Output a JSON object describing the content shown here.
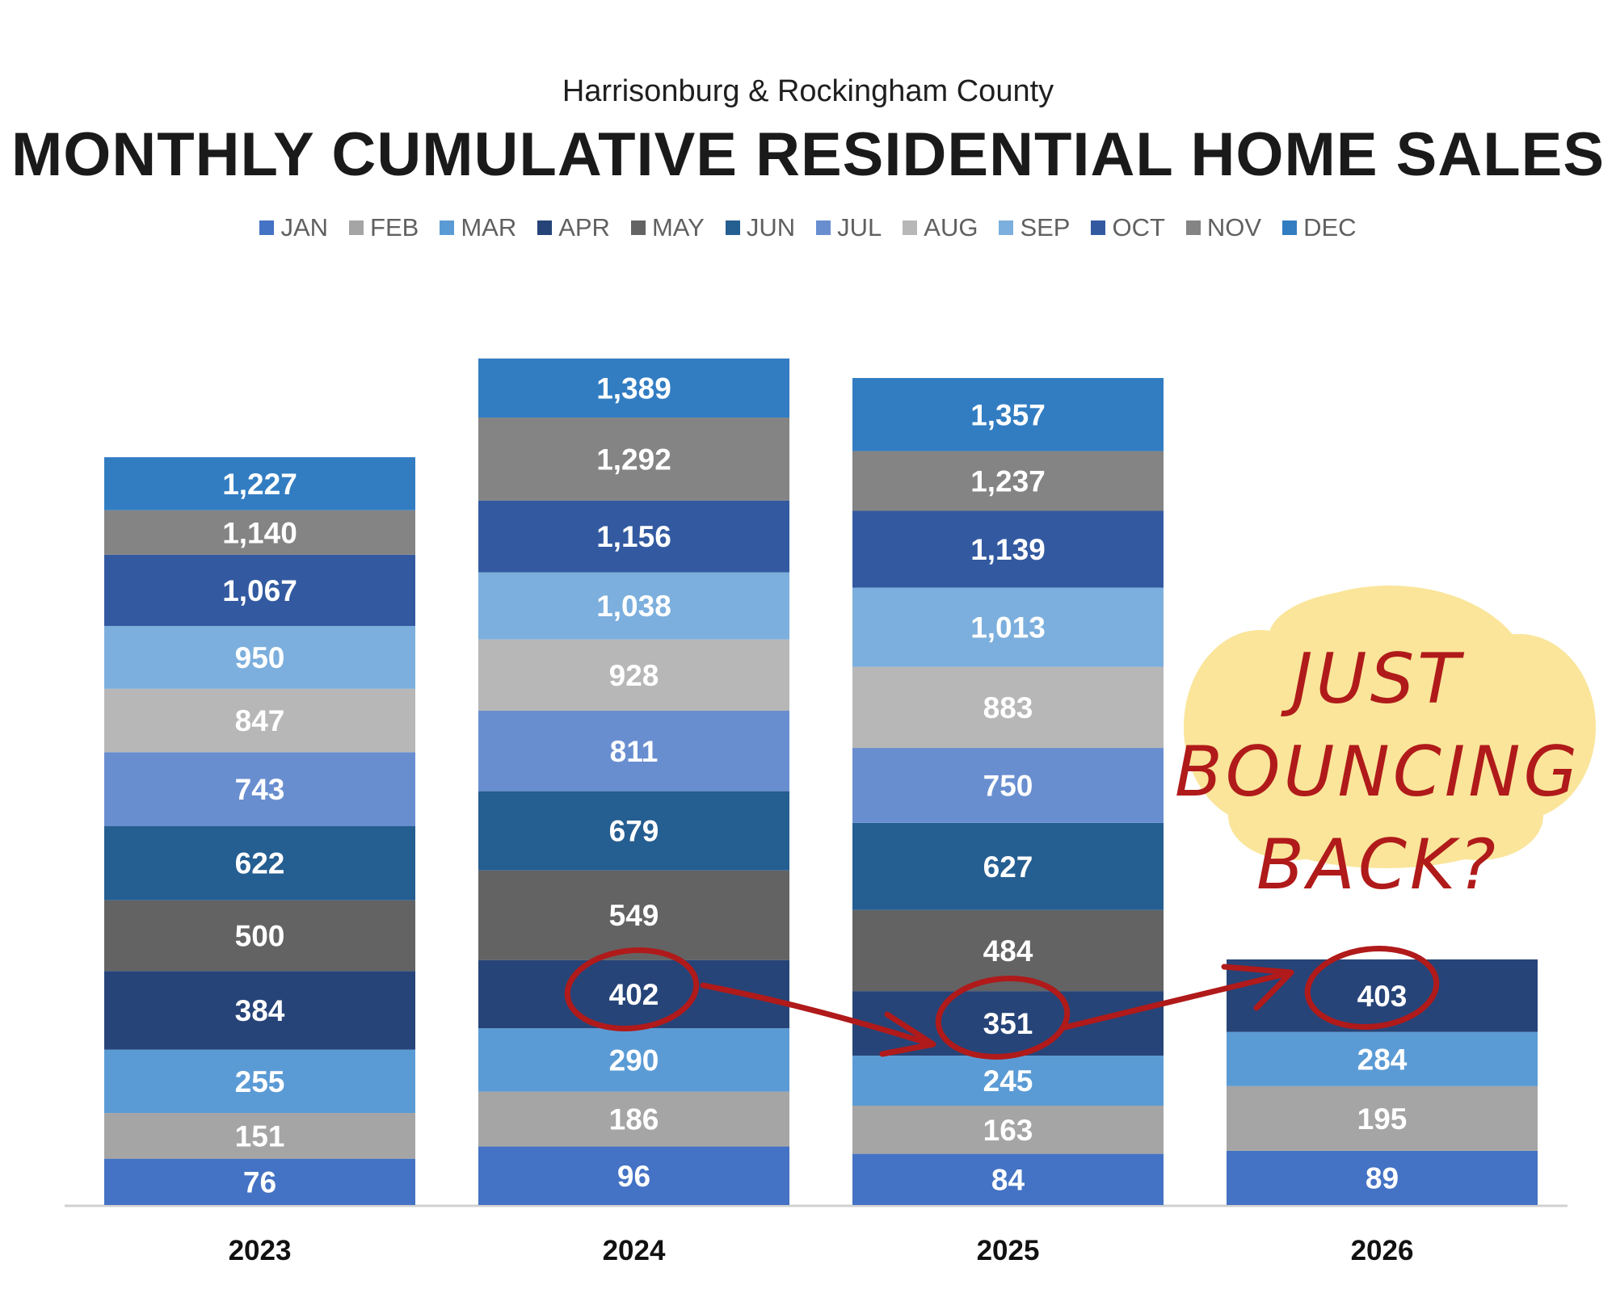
{
  "header": {
    "subtitle": "Harrisonburg & Rockingham County",
    "title": "MONTHLY CUMULATIVE RESIDENTIAL HOME SALES"
  },
  "chart_data": {
    "type": "bar",
    "subtitle": "Harrisonburg & Rockingham County",
    "title": "MONTHLY CUMULATIVE RESIDENTIAL HOME SALES",
    "categories": [
      "2023",
      "2024",
      "2025",
      "2026"
    ],
    "legend_position": "top",
    "grid": false,
    "ylim": [
      0,
      1500
    ],
    "series": [
      {
        "name": "JAN",
        "color": "#4472c4",
        "values": [
          76,
          96,
          84,
          89
        ]
      },
      {
        "name": "FEB",
        "color": "#a5a5a5",
        "values": [
          151,
          186,
          163,
          195
        ]
      },
      {
        "name": "MAR",
        "color": "#5b9bd5",
        "values": [
          255,
          290,
          245,
          284
        ]
      },
      {
        "name": "APR",
        "color": "#264478",
        "values": [
          384,
          402,
          351,
          403
        ]
      },
      {
        "name": "MAY",
        "color": "#636363",
        "values": [
          500,
          549,
          484,
          null
        ]
      },
      {
        "name": "JUN",
        "color": "#255e91",
        "values": [
          622,
          679,
          627,
          null
        ]
      },
      {
        "name": "JUL",
        "color": "#698ed0",
        "values": [
          743,
          811,
          750,
          null
        ]
      },
      {
        "name": "AUG",
        "color": "#b7b7b7",
        "values": [
          847,
          928,
          883,
          null
        ]
      },
      {
        "name": "SEP",
        "color": "#7cafdd",
        "values": [
          950,
          1038,
          1013,
          null
        ]
      },
      {
        "name": "OCT",
        "color": "#335aa1",
        "values": [
          1067,
          1156,
          1139,
          null
        ]
      },
      {
        "name": "NOV",
        "color": "#848484",
        "values": [
          1140,
          1292,
          1237,
          null
        ]
      },
      {
        "name": "DEC",
        "color": "#327dc2",
        "values": [
          1227,
          1389,
          1357,
          null
        ]
      }
    ],
    "data_labels": [
      [
        "76",
        "151",
        "255",
        "384",
        "500",
        "622",
        "743",
        "847",
        "950",
        "1,067",
        "1,140",
        "1,227"
      ],
      [
        "96",
        "186",
        "290",
        "402",
        "549",
        "679",
        "811",
        "928",
        "1,038",
        "1,156",
        "1,292",
        "1,389"
      ],
      [
        "84",
        "163",
        "245",
        "351",
        "484",
        "627",
        "750",
        "883",
        "1,013",
        "1,139",
        "1,237",
        "1,357"
      ],
      [
        "89",
        "195",
        "284",
        "403"
      ]
    ],
    "annotation": {
      "lines": [
        "JUST",
        "BOUNCING",
        "BACK?"
      ],
      "circled": [
        "402",
        "351",
        "403"
      ],
      "color": "#b01a1a",
      "bubble_color": "#fae59a"
    }
  }
}
